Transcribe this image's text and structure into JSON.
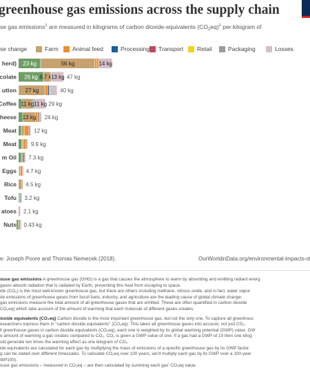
{
  "header": {
    "title": "greenhouse gas emissions across the supply chain",
    "subtitle_parts": [
      "se gas emissions",
      "1",
      " are measured in kilograms of carbon dioxide-equivalents (CO",
      "2",
      "eq)",
      "2",
      " per kilogram of"
    ]
  },
  "legend": {
    "title": "se change",
    "items": [
      {
        "label": "Farm",
        "color": "#c7a26e"
      },
      {
        "label": "Animal feed",
        "color": "#f08e2f"
      },
      {
        "label": "Processing",
        "color": "#1a5f9e"
      },
      {
        "label": "Transport",
        "color": "#c2475e"
      },
      {
        "label": "Retail",
        "color": "#f4d222"
      },
      {
        "label": "Packaging",
        "color": "#9c9c9c"
      },
      {
        "label": "Losses",
        "color": "#d3bfc8"
      }
    ]
  },
  "chart_data": {
    "type": "bar",
    "orientation": "horizontal",
    "stacked": true,
    "unit": "kg",
    "series": [
      {
        "name": "Land use change",
        "color": "#6f9e64"
      },
      {
        "name": "Farm",
        "color": "#c7a26e"
      },
      {
        "name": "Animal feed",
        "color": "#f08e2f"
      },
      {
        "name": "Processing",
        "color": "#1a5f9e"
      },
      {
        "name": "Transport",
        "color": "#c2475e"
      },
      {
        "name": "Retail",
        "color": "#f4d222"
      },
      {
        "name": "Packaging",
        "color": "#9c9c9c"
      },
      {
        "name": "Losses",
        "color": "#d3bfc8"
      }
    ],
    "rows": [
      {
        "label": "herd)",
        "values": [
          23,
          56,
          2.5,
          0.8,
          0.3,
          0.2,
          0.4,
          14
        ],
        "segment_labels": [
          "23 kg",
          "56 kg",
          "",
          "",
          "",
          "",
          "",
          "14 kg"
        ],
        "total_label": ""
      },
      {
        "label": "colate",
        "values": [
          26,
          6.7,
          0,
          0.2,
          0.1,
          0.04,
          1.0,
          13
        ],
        "segment_labels": [
          "26 kg",
          "6.7 kg",
          "",
          "",
          "",
          "",
          "",
          "13 kg"
        ],
        "total_label": "47 kg"
      },
      {
        "label": "utton",
        "values": [
          0.5,
          27,
          3,
          1.4,
          0.6,
          0.3,
          0.3,
          7
        ],
        "segment_labels": [
          "",
          "27 kg",
          "",
          "",
          "",
          "",
          "",
          ""
        ],
        "total_label": "40 kg"
      },
      {
        "label": "Coffee",
        "values": [
          3.7,
          11,
          0,
          0.6,
          0.1,
          0.1,
          1.6,
          11
        ],
        "segment_labels": [
          "",
          "11 kg",
          "",
          "",
          "",
          "",
          "",
          "11 kg"
        ],
        "total_label": "29 kg"
      },
      {
        "label": "heese",
        "values": [
          4.5,
          13,
          2.4,
          1.0,
          0.2,
          0.3,
          0.2,
          2.4
        ],
        "segment_labels": [
          "",
          "13 kg",
          "",
          "",
          "",
          "",
          "",
          ""
        ],
        "total_label": "24 kg"
      },
      {
        "label": "Meat",
        "values": [
          3,
          3,
          4.5,
          0.3,
          0.3,
          0.2,
          0.2,
          1.5
        ],
        "segment_labels": [
          "",
          "",
          "",
          "",
          "",
          "",
          "",
          ""
        ],
        "total_label": "12 kg"
      },
      {
        "label": "Meat",
        "values": [
          3.5,
          1.5,
          2.5,
          0.5,
          0.3,
          0.2,
          0.3,
          1.1
        ],
        "segment_labels": [
          "",
          "",
          "",
          "",
          "",
          "",
          "",
          ""
        ],
        "total_label": "9.9 kg"
      },
      {
        "label": "m Oil",
        "values": [
          3.1,
          1.5,
          0,
          1.3,
          0.2,
          0,
          0.9,
          0.3
        ],
        "segment_labels": [
          "",
          "",
          "",
          "",
          "",
          "",
          "",
          ""
        ],
        "total_label": "7.3 kg"
      },
      {
        "label": "Eggs",
        "values": [
          0.7,
          1.3,
          2.2,
          0,
          0.1,
          0,
          0.2,
          0.2
        ],
        "segment_labels": [
          "",
          "",
          "",
          "",
          "",
          "",
          "",
          ""
        ],
        "total_label": "4.7 kg"
      },
      {
        "label": "Rice",
        "values": [
          0,
          3.6,
          0,
          0.1,
          0.1,
          0.1,
          0.1,
          0.5
        ],
        "segment_labels": [
          "",
          "",
          "",
          "",
          "",
          "",
          "",
          ""
        ],
        "total_label": "4.5 kg"
      },
      {
        "label": "Tofu",
        "values": [
          1.0,
          0.5,
          0,
          0.8,
          0.2,
          0.3,
          0.2,
          0.2
        ],
        "segment_labels": [
          "",
          "",
          "",
          "",
          "",
          "",
          "",
          ""
        ],
        "total_label": "3.2 kg"
      },
      {
        "label": "atoes",
        "values": [
          0,
          0.2,
          0,
          0,
          0.1,
          0,
          0,
          1.8
        ],
        "segment_labels": [
          "",
          "",
          "",
          "",
          "",
          "",
          "",
          ""
        ],
        "total_label": "2.1 kg"
      },
      {
        "label": "Nuts",
        "values": [
          -2.1,
          2.1,
          0,
          0,
          0.1,
          0,
          0.1,
          0.2
        ],
        "segment_labels": [
          "",
          "",
          "",
          "",
          "",
          "",
          "",
          ""
        ],
        "total_label": "0.43 kg"
      }
    ]
  },
  "footer": {
    "source": "e: Joseph Poore and Thomas Nemecek (2018).",
    "url": "OurWorldinData.org/environmental-impacts-of-fo"
  },
  "notes": {
    "p1_head": "ouse gas emissions",
    "p1_lines": [
      " A greenhouse gas (GHG) is a gas that causes the atmosphere to warm by absorbing and emitting radiant energ",
      " gases absorb radiation that is radiated by Earth, preventing this heat from escaping to space.",
      "ide (CO₂) is the most well-known greenhouse gas, but there are others including methane, nitrous oxide, and in fact, water vapor",
      "de emissions of greenhouse gases from fossil fuels, industry, and agriculture are the leading cause of global climate change.",
      " gas emissions measure the total amount of all greenhouse gases that are emitted. These are often quantified in carbon dioxide",
      "CO₂eq) which take account of the amount of warming that each molecule of different gases creates."
    ],
    "p2_head": "ioxide equivalents (CO₂eq)",
    "p2_lines": [
      " Carbon dioxide is the most important greenhouse gas, but not the only one. To capture all greenhous",
      "esearchers express them in \"carbon dioxide equivalents\" (CO₂eq). This takes all greenhouse gases into account, not just CO₂.",
      "ll greenhouse gases in carbon dioxide equivalents (CO₂eq), each one is weighted by its global warming potential (GWP) value. GW",
      "e amount of warming a gas creates compared to CO₂. CO₂ is given a GWP value of one. If a gas had a GWP of 10 then one kilog",
      "uld generate ten times the warming effect as one kilogram of CO₂.",
      "ide equivalents are calculated for each gas by multiplying the mass of emissions of a specific greenhouse gas by its GWP factor.",
      "g can be stated over different timescales. To calculate CO₂eq over 100 years, we'd multiply each gas by its GWP over a 100-year",
      "WP100).",
      "ouse gas emissions – measured in CO₂eq – are then calculated by summing each gas' CO₂eq value."
    ]
  }
}
